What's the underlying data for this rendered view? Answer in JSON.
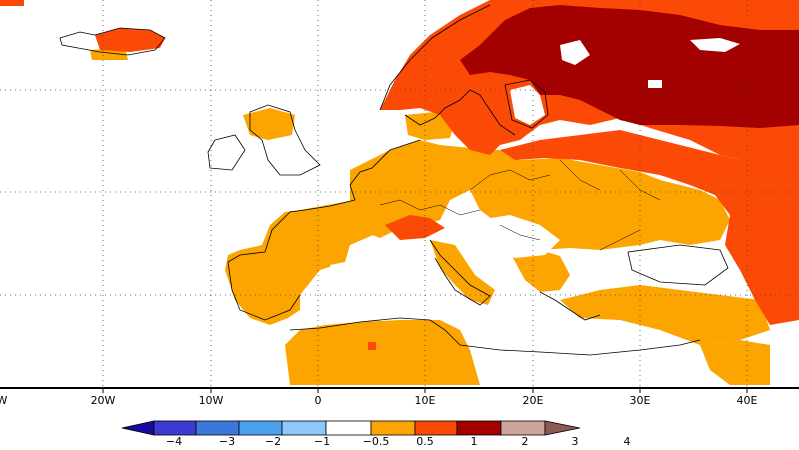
{
  "map": {
    "longitude_labels": [
      "W",
      "20W",
      "10W",
      "0",
      "10E",
      "20E",
      "30E",
      "40E"
    ],
    "projection": "cylindrical lat-lon",
    "region": "Europe, North Africa, Middle East",
    "anomaly_colors": {
      "0.5-1": "#fca500",
      "1-2": "#fa4a06",
      "2-3": "#ed3200",
      "3-4": "#a30000",
      "none": "#ffffff"
    }
  },
  "colorbar": {
    "labels": [
      "−4",
      "−3",
      "−2",
      "−1",
      "−0.5",
      "0.5",
      "1",
      "2",
      "3",
      "4"
    ],
    "colors": [
      "#1a0aa0",
      "#3c3cd2",
      "#3c78dc",
      "#4ba0f0",
      "#8cc8fa",
      "#ffffff",
      "#fca500",
      "#fa4a06",
      "#a30000",
      "#cea49a",
      "#8b5a50"
    ]
  }
}
